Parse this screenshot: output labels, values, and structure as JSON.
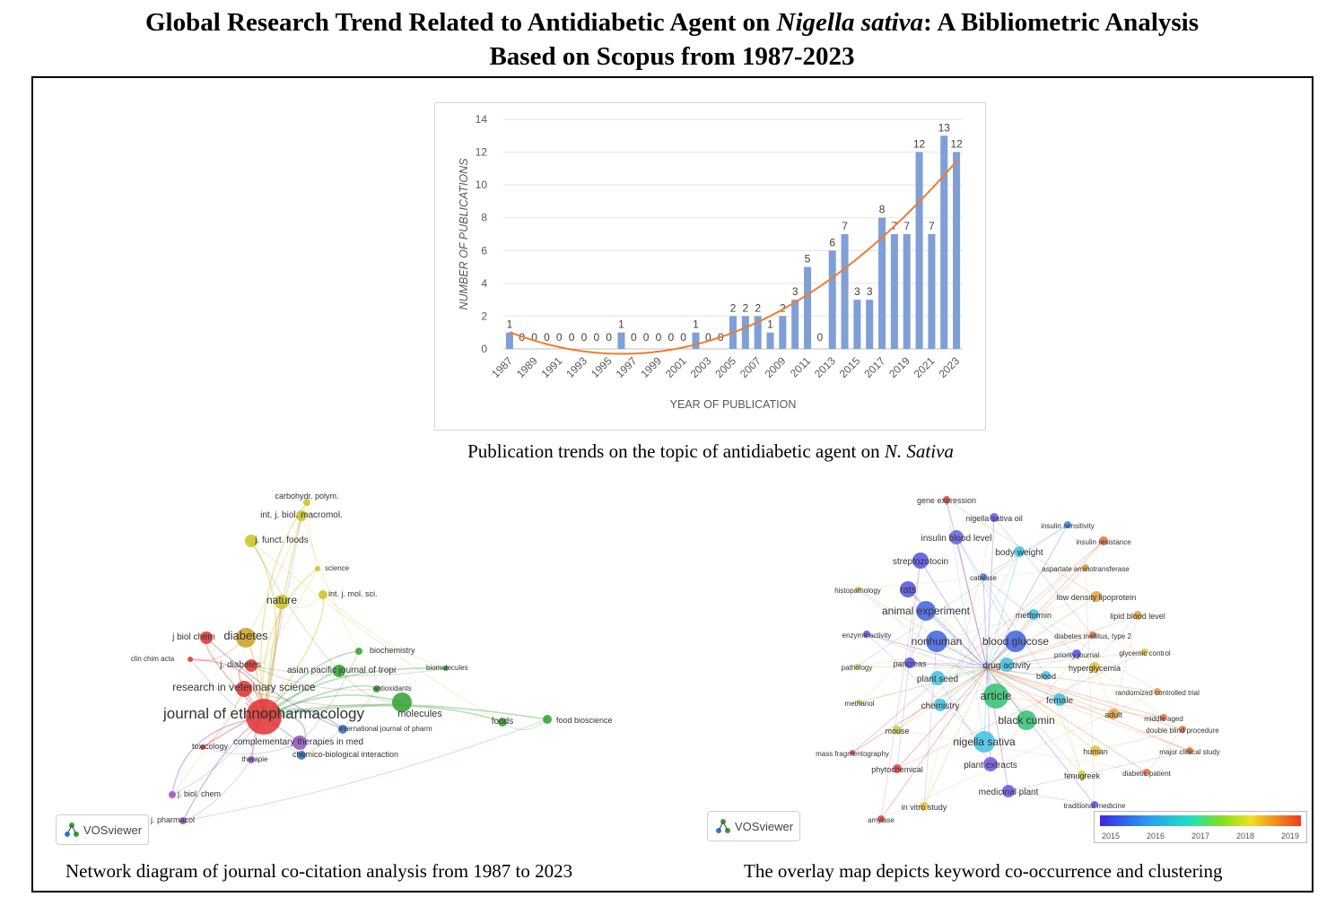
{
  "figure": {
    "title_part1": "Global Research Trend Related to Antidiabetic Agent on ",
    "title_italic": "Nigella sativa",
    "title_part2": ": A Bibliometric Analysis",
    "title_line2": "Based on Scopus from 1987-2023",
    "caption_chart_prefix": "Publication trends on the topic of antidiabetic agent on ",
    "caption_chart_italic": "N. Sativa",
    "caption_left": "Network diagram of journal co-citation analysis from 1987 to 2023",
    "caption_right": "The overlay map depicts keyword co-occurrence and clustering"
  },
  "chart_data": {
    "type": "bar",
    "xlabel": "YEAR OF PUBLICATION",
    "ylabel": "NUMBER OF PUBLICATIONS",
    "categories": [
      "1987",
      "1988",
      "1989",
      "1990",
      "1991",
      "1992",
      "1993",
      "1994",
      "1995",
      "1996",
      "1997",
      "1998",
      "1999",
      "2000",
      "2001",
      "2002",
      "2003",
      "2004",
      "2005",
      "2006",
      "2007",
      "2008",
      "2009",
      "2010",
      "2011",
      "2012",
      "2013",
      "2014",
      "2015",
      "2016",
      "2017",
      "2018",
      "2019",
      "2020",
      "2021",
      "2022",
      "2023"
    ],
    "x_tick_labels": [
      "1987",
      "1989",
      "1991",
      "1993",
      "1995",
      "1997",
      "1999",
      "2001",
      "2003",
      "2005",
      "2007",
      "2009",
      "2011",
      "2013",
      "2015",
      "2017",
      "2019",
      "2021",
      "2023"
    ],
    "values": [
      1,
      0,
      0,
      0,
      0,
      0,
      0,
      0,
      0,
      1,
      0,
      0,
      0,
      0,
      0,
      1,
      0,
      0,
      2,
      2,
      2,
      1,
      2,
      3,
      5,
      0,
      6,
      7,
      3,
      3,
      8,
      7,
      7,
      12,
      7,
      13,
      12
    ],
    "y_tick_labels": [
      "0",
      "2",
      "4",
      "6",
      "8",
      "10",
      "12",
      "14"
    ],
    "y_tick_values": [
      0,
      2,
      4,
      6,
      8,
      10,
      12,
      14
    ],
    "ylim": [
      0,
      14
    ],
    "trendline": "polynomial",
    "bar_color": "#7f9fd6",
    "trend_color": "#ed7d31"
  },
  "journal_network": {
    "brand": "VOSviewer",
    "labels": [
      {
        "text": "carbohydr. polym.",
        "c": "#c9c320"
      },
      {
        "text": "int. j. biol. macromol.",
        "c": "#c9c320"
      },
      {
        "text": "j. funct. foods",
        "c": "#c9c320"
      },
      {
        "text": "science",
        "c": "#c9c320"
      },
      {
        "text": "nature",
        "c": "#c9c320"
      },
      {
        "text": "int. j. mol. sci.",
        "c": "#c9c320"
      },
      {
        "text": "j biol chem",
        "c": "#e03030"
      },
      {
        "text": "diabetes",
        "c": "#c9a020"
      },
      {
        "text": "clin chim acta",
        "c": "#e03030"
      },
      {
        "text": "j. diabetes",
        "c": "#e03030"
      },
      {
        "text": "biochemistry",
        "c": "#30a030"
      },
      {
        "text": "asian pacific journal of tropi",
        "c": "#30a030"
      },
      {
        "text": "biomolecules",
        "c": "#30a030"
      },
      {
        "text": "research in veterinary science",
        "c": "#e03030"
      },
      {
        "text": "antioxidants",
        "c": "#30a030"
      },
      {
        "text": "journal of ethnopharmacology",
        "c": "#e03030"
      },
      {
        "text": "molecules",
        "c": "#30a030"
      },
      {
        "text": "foods",
        "c": "#30a030"
      },
      {
        "text": "food bioscience",
        "c": "#30a030"
      },
      {
        "text": "international journal of pharm",
        "c": "#3070c0"
      },
      {
        "text": "toxicology",
        "c": "#e03030"
      },
      {
        "text": "complementary therapies in med",
        "c": "#9050c0"
      },
      {
        "text": "therapie",
        "c": "#9050c0"
      },
      {
        "text": "chemico-biological interaction",
        "c": "#3070c0"
      },
      {
        "text": "j. biol. chem",
        "c": "#9050c0"
      },
      {
        "text": "j. pharmacol",
        "c": "#9050c0"
      }
    ]
  },
  "keyword_overlay": {
    "brand": "VOSviewer",
    "legend_ticks": [
      "2015",
      "2016",
      "2017",
      "2018",
      "2019"
    ],
    "labels": [
      {
        "text": "gene expression",
        "c": "#e04040"
      },
      {
        "text": "nigella sativa oil",
        "c": "#7050e0"
      },
      {
        "text": "insulin sensitivity",
        "c": "#4080e0"
      },
      {
        "text": "insulin blood level",
        "c": "#6060e0"
      },
      {
        "text": "body weight",
        "c": "#40c0e0"
      },
      {
        "text": "insulin resistance",
        "c": "#e07040"
      },
      {
        "text": "streptozotocin",
        "c": "#5050e0"
      },
      {
        "text": "aspartate aminotransferase",
        "c": "#e0a040"
      },
      {
        "text": "catalase",
        "c": "#4080e0"
      },
      {
        "text": "histopathology",
        "c": "#e0c040"
      },
      {
        "text": "rats",
        "c": "#5050e0"
      },
      {
        "text": "low density lipoprotein",
        "c": "#e0a040"
      },
      {
        "text": "animal experiment",
        "c": "#4060e0"
      },
      {
        "text": "metformin",
        "c": "#40c0e0"
      },
      {
        "text": "lipid blood level",
        "c": "#e0a040"
      },
      {
        "text": "enzyme activity",
        "c": "#5050e0"
      },
      {
        "text": "diabetes mellitus, type 2",
        "c": "#e07040"
      },
      {
        "text": "nonhuman",
        "c": "#4060e0"
      },
      {
        "text": "blood glucose",
        "c": "#4060e0"
      },
      {
        "text": "priority journal",
        "c": "#5050e0"
      },
      {
        "text": "glycemic control",
        "c": "#e0c040"
      },
      {
        "text": "pathology",
        "c": "#c0d040"
      },
      {
        "text": "pancreas",
        "c": "#5050e0"
      },
      {
        "text": "drug activity",
        "c": "#40c0e0"
      },
      {
        "text": "hyperglycemia",
        "c": "#e0c040"
      },
      {
        "text": "plant seed",
        "c": "#40c0e0"
      },
      {
        "text": "blood",
        "c": "#40c0e0"
      },
      {
        "text": "randomized controlled trial",
        "c": "#e0a040"
      },
      {
        "text": "methanol",
        "c": "#e0c040"
      },
      {
        "text": "article",
        "c": "#30c070"
      },
      {
        "text": "female",
        "c": "#40c0e0"
      },
      {
        "text": "chemistry",
        "c": "#40c0e0"
      },
      {
        "text": "adult",
        "c": "#e0a040"
      },
      {
        "text": "middle aged",
        "c": "#e07040"
      },
      {
        "text": "black cumin",
        "c": "#30c070"
      },
      {
        "text": "double blind procedure",
        "c": "#e07040"
      },
      {
        "text": "mouse",
        "c": "#c0d040"
      },
      {
        "text": "nigella sativa",
        "c": "#40c0e0"
      },
      {
        "text": "mass fragmentography",
        "c": "#e04040"
      },
      {
        "text": "human",
        "c": "#e0c040"
      },
      {
        "text": "major clinical study",
        "c": "#e07040"
      },
      {
        "text": "phytochemical",
        "c": "#e04040"
      },
      {
        "text": "plant extracts",
        "c": "#7050e0"
      },
      {
        "text": "fenugreek",
        "c": "#c0d040"
      },
      {
        "text": "diabetic patient",
        "c": "#e07040"
      },
      {
        "text": "medicinal plant",
        "c": "#7050e0"
      },
      {
        "text": "traditional medicine",
        "c": "#7050e0"
      },
      {
        "text": "in vitro study",
        "c": "#e0c040"
      },
      {
        "text": "amylase",
        "c": "#e04040"
      }
    ]
  }
}
